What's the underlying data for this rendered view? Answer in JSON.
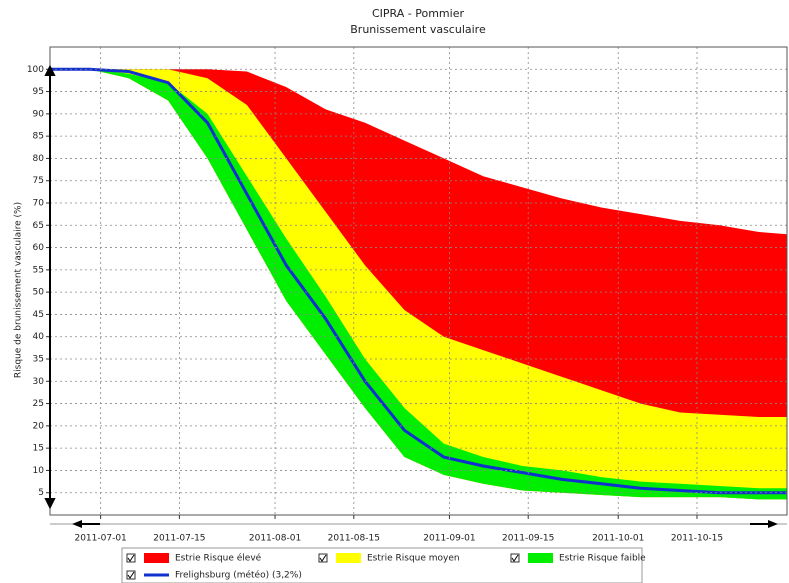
{
  "chart_data": {
    "type": "area",
    "title": "CIPRA - Pommier",
    "subtitle": "Brunissement vasculaire",
    "y_label": "Risque de brunissement vasculaire (%)",
    "x": [
      "2011-06-22",
      "2011-06-29",
      "2011-07-06",
      "2011-07-13",
      "2011-07-20",
      "2011-07-27",
      "2011-08-03",
      "2011-08-10",
      "2011-08-17",
      "2011-08-24",
      "2011-08-31",
      "2011-09-07",
      "2011-09-14",
      "2011-09-21",
      "2011-09-28",
      "2011-10-05",
      "2011-10-12",
      "2011-10-19",
      "2011-10-26",
      "2011-10-31"
    ],
    "xlim": [
      "2011-06-22",
      "2011-10-31"
    ],
    "xticks": [
      "2011-07-01",
      "2011-07-15",
      "2011-08-01",
      "2011-08-15",
      "2011-09-01",
      "2011-09-15",
      "2011-10-01",
      "2011-10-15"
    ],
    "ylim": [
      0,
      105
    ],
    "yticks": [
      5,
      10,
      15,
      20,
      25,
      30,
      35,
      40,
      45,
      50,
      55,
      60,
      65,
      70,
      75,
      80,
      85,
      90,
      95,
      100
    ],
    "grid": true,
    "series": [
      {
        "name": "Estrie Risque élevé",
        "color": "#ff0000",
        "kind": "area",
        "values": [
          100,
          100,
          100,
          100,
          100,
          99.5,
          96,
          91,
          88,
          84,
          80,
          76,
          73.5,
          71,
          69,
          67.5,
          66,
          65,
          63.5,
          63
        ]
      },
      {
        "name": "Estrie Risque moyen",
        "color": "#ffff00",
        "kind": "area",
        "values": [
          100,
          100,
          100,
          100,
          98,
          92,
          80,
          68,
          56,
          46,
          40,
          37,
          34,
          31,
          28,
          25,
          23,
          22.5,
          22,
          22
        ]
      },
      {
        "name": "Estrie Risque faible",
        "color": "#00ee00",
        "kind": "area",
        "values": [
          100,
          100,
          99,
          97,
          90,
          76,
          62,
          49,
          35,
          24,
          16,
          13,
          11,
          10,
          8.5,
          7.5,
          7,
          6.5,
          6,
          6
        ],
        "low": [
          100,
          100,
          98,
          93,
          80,
          64,
          48,
          36,
          24,
          13,
          9,
          7,
          5.5,
          5,
          4.5,
          4,
          4,
          4,
          3.5,
          3.5
        ]
      },
      {
        "name": "Frelighsburg (météo) (3,2%)",
        "color": "#1030d0",
        "kind": "line",
        "values": [
          100,
          100,
          99.5,
          97,
          88,
          72,
          56,
          44,
          30,
          19,
          13,
          11,
          9.5,
          8,
          7,
          6,
          5.5,
          5,
          5,
          5
        ]
      }
    ]
  }
}
